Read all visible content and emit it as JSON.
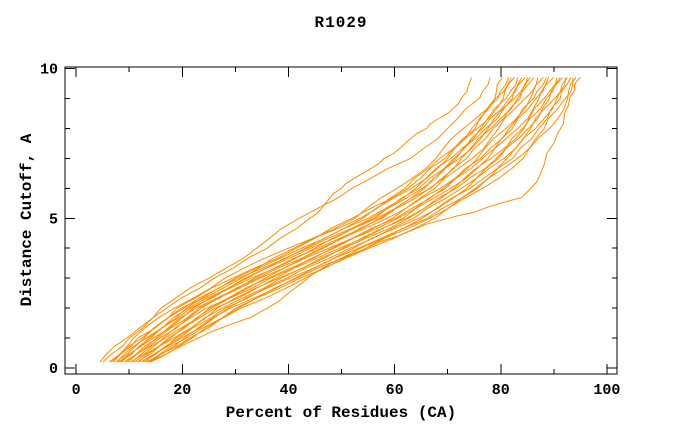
{
  "chart_data": {
    "type": "line",
    "title": "R1029",
    "xlabel": "Percent of Residues (CA)",
    "ylabel": "Distance Cutoff, A",
    "xlim": [
      -2.1,
      101.9
    ],
    "ylim": [
      -0.2,
      10.05
    ],
    "grid": false,
    "legend": "none",
    "axis_color": "#000000",
    "line_color": "#FF8C00",
    "x_major_ticks": [
      0,
      20,
      40,
      60,
      80,
      100
    ],
    "x_tick_labels": [
      "0",
      "20",
      "40",
      "60",
      "80",
      "100"
    ],
    "x_minor_ticks": [
      10,
      30,
      50,
      70,
      90
    ],
    "y_major_ticks": [
      0,
      5,
      10
    ],
    "y_tick_labels": [
      "0",
      "5",
      "10"
    ],
    "y_minor_ticks": [
      1,
      2,
      3,
      4,
      6,
      7,
      8,
      9
    ],
    "series_units": "points are [percent_of_residues, distance_cutoff_A]",
    "series": [
      [
        [
          6.2,
          0.2
        ],
        [
          10.8,
          1
        ],
        [
          18.5,
          2
        ],
        [
          28,
          3
        ],
        [
          40,
          4
        ],
        [
          52.5,
          5
        ],
        [
          60.5,
          6
        ],
        [
          67.8,
          7
        ],
        [
          73,
          8
        ],
        [
          78.9,
          9
        ],
        [
          80.3,
          9.7
        ]
      ],
      [
        [
          6.6,
          0.2
        ],
        [
          12.4,
          1
        ],
        [
          19,
          2
        ],
        [
          29.5,
          3
        ],
        [
          41.5,
          4
        ],
        [
          52,
          5
        ],
        [
          62.5,
          6
        ],
        [
          69.5,
          7
        ],
        [
          74.5,
          8
        ],
        [
          79.5,
          9
        ],
        [
          81.5,
          9.7
        ]
      ],
      [
        [
          7,
          0.2
        ],
        [
          11.6,
          1
        ],
        [
          20.3,
          2
        ],
        [
          30,
          3
        ],
        [
          41,
          4
        ],
        [
          53.5,
          5
        ],
        [
          62,
          6
        ],
        [
          68.5,
          7
        ],
        [
          75.2,
          8
        ],
        [
          79,
          9
        ],
        [
          82,
          9.7
        ]
      ],
      [
        [
          7.4,
          0.2
        ],
        [
          12.8,
          1
        ],
        [
          19.8,
          2
        ],
        [
          31.2,
          3
        ],
        [
          42.5,
          4
        ],
        [
          54,
          5
        ],
        [
          63.2,
          6
        ],
        [
          70,
          7
        ],
        [
          75.6,
          8
        ],
        [
          80.5,
          9
        ],
        [
          82.6,
          9.7
        ]
      ],
      [
        [
          7.8,
          0.2
        ],
        [
          13.2,
          1
        ],
        [
          20.8,
          2
        ],
        [
          30.6,
          3
        ],
        [
          43.2,
          4
        ],
        [
          55,
          5
        ],
        [
          64,
          6
        ],
        [
          70.6,
          7
        ],
        [
          76.2,
          8
        ],
        [
          81,
          9
        ],
        [
          83.2,
          9.7
        ]
      ],
      [
        [
          8,
          0.2
        ],
        [
          13.6,
          1
        ],
        [
          21.2,
          2
        ],
        [
          31.8,
          3
        ],
        [
          43.6,
          4
        ],
        [
          55.6,
          5
        ],
        [
          64.6,
          6
        ],
        [
          71.2,
          7
        ],
        [
          76.6,
          8
        ],
        [
          81.6,
          9
        ],
        [
          84,
          9.7
        ]
      ],
      [
        [
          8.3,
          0.2
        ],
        [
          14,
          1
        ],
        [
          21.6,
          2
        ],
        [
          32.2,
          3
        ],
        [
          44.2,
          4
        ],
        [
          56.2,
          5
        ],
        [
          65.2,
          6
        ],
        [
          71.6,
          7
        ],
        [
          77.2,
          8
        ],
        [
          82.2,
          9
        ],
        [
          84.6,
          9.7
        ]
      ],
      [
        [
          8.6,
          0.2
        ],
        [
          14.5,
          1
        ],
        [
          22.1,
          2
        ],
        [
          33,
          3
        ],
        [
          45,
          4
        ],
        [
          56.6,
          5
        ],
        [
          65.6,
          6
        ],
        [
          72.2,
          7
        ],
        [
          77.6,
          8
        ],
        [
          82.6,
          9
        ],
        [
          85,
          9.7
        ]
      ],
      [
        [
          9,
          0.2
        ],
        [
          15,
          1
        ],
        [
          22.6,
          2
        ],
        [
          33.6,
          3
        ],
        [
          45.6,
          4
        ],
        [
          57.2,
          5
        ],
        [
          66.8,
          6
        ],
        [
          72.6,
          7
        ],
        [
          78.2,
          8
        ],
        [
          83.2,
          9
        ],
        [
          85.6,
          9.7
        ]
      ],
      [
        [
          9.4,
          0.2
        ],
        [
          15.4,
          1
        ],
        [
          23.1,
          2
        ],
        [
          34.2,
          3
        ],
        [
          46.2,
          4
        ],
        [
          57.6,
          5
        ],
        [
          66.6,
          6
        ],
        [
          73.6,
          7
        ],
        [
          78.6,
          8
        ],
        [
          83.6,
          9
        ],
        [
          86.2,
          9.7
        ]
      ],
      [
        [
          9.8,
          0.2
        ],
        [
          15.8,
          1
        ],
        [
          23.6,
          2
        ],
        [
          34.6,
          3
        ],
        [
          46.6,
          4
        ],
        [
          58.6,
          5
        ],
        [
          67.6,
          6
        ],
        [
          74.6,
          7
        ],
        [
          79.6,
          8
        ],
        [
          84.6,
          9
        ],
        [
          87,
          9.7
        ]
      ],
      [
        [
          10.2,
          0.2
        ],
        [
          16.4,
          1
        ],
        [
          24.6,
          2
        ],
        [
          35.6,
          3
        ],
        [
          47.6,
          4
        ],
        [
          59.6,
          5
        ],
        [
          68.6,
          6
        ],
        [
          75.6,
          7
        ],
        [
          81,
          8
        ],
        [
          85.6,
          9
        ],
        [
          88,
          9.7
        ]
      ],
      [
        [
          10.6,
          0.2
        ],
        [
          16.8,
          1
        ],
        [
          25.1,
          2
        ],
        [
          36.2,
          3
        ],
        [
          48.2,
          4
        ],
        [
          60.2,
          5
        ],
        [
          69.2,
          6
        ],
        [
          76.2,
          7
        ],
        [
          81.6,
          8
        ],
        [
          86.2,
          9
        ],
        [
          88.6,
          9.7
        ]
      ],
      [
        [
          11,
          0.2
        ],
        [
          17.4,
          1
        ],
        [
          25.6,
          2
        ],
        [
          36.6,
          3
        ],
        [
          48.6,
          4
        ],
        [
          60.6,
          5
        ],
        [
          69.6,
          6
        ],
        [
          76.6,
          7
        ],
        [
          82.2,
          8
        ],
        [
          86.6,
          9
        ],
        [
          89,
          9.7
        ]
      ],
      [
        [
          11.4,
          0.2
        ],
        [
          17.8,
          1
        ],
        [
          26.2,
          2
        ],
        [
          37.6,
          3
        ],
        [
          49.6,
          4
        ],
        [
          61.6,
          5
        ],
        [
          70.6,
          6
        ],
        [
          77.6,
          7
        ],
        [
          83.2,
          8
        ],
        [
          87.2,
          9
        ],
        [
          90,
          9.7
        ]
      ],
      [
        [
          11.8,
          0.2
        ],
        [
          18.4,
          1
        ],
        [
          26.6,
          2
        ],
        [
          38.2,
          3
        ],
        [
          50.2,
          4
        ],
        [
          62.2,
          5
        ],
        [
          71.2,
          6
        ],
        [
          78.2,
          7
        ],
        [
          84.4,
          8
        ],
        [
          88.2,
          9
        ],
        [
          90.6,
          9.7
        ]
      ],
      [
        [
          12.2,
          0.2
        ],
        [
          18.8,
          1
        ],
        [
          27.6,
          2
        ],
        [
          38.6,
          3
        ],
        [
          50.6,
          4
        ],
        [
          62.6,
          5
        ],
        [
          71.6,
          6
        ],
        [
          79.2,
          7
        ],
        [
          84.2,
          8
        ],
        [
          88.6,
          9
        ],
        [
          91.2,
          9.7
        ]
      ],
      [
        [
          12.6,
          0.2
        ],
        [
          19.4,
          1
        ],
        [
          28.1,
          2
        ],
        [
          39.6,
          3
        ],
        [
          51.6,
          4
        ],
        [
          63.6,
          5
        ],
        [
          72.6,
          6
        ],
        [
          79.6,
          7
        ],
        [
          85.2,
          8
        ],
        [
          89.2,
          9
        ],
        [
          91.6,
          9.7
        ]
      ],
      [
        [
          13,
          0.2
        ],
        [
          19.8,
          1
        ],
        [
          28.6,
          2
        ],
        [
          40.2,
          3
        ],
        [
          52.2,
          4
        ],
        [
          64.6,
          5
        ],
        [
          73.6,
          6
        ],
        [
          80.6,
          7
        ],
        [
          85.6,
          8
        ],
        [
          90.2,
          9
        ],
        [
          92.2,
          9.7
        ]
      ],
      [
        [
          13.3,
          0.2
        ],
        [
          20.4,
          1
        ],
        [
          29.1,
          2
        ],
        [
          41.2,
          3
        ],
        [
          53.2,
          4
        ],
        [
          65.2,
          5
        ],
        [
          74.2,
          6
        ],
        [
          81.2,
          7
        ],
        [
          86.6,
          8
        ],
        [
          90.6,
          9
        ],
        [
          92.6,
          9.7
        ]
      ],
      [
        [
          13.6,
          0.2
        ],
        [
          20.8,
          1
        ],
        [
          30.1,
          2
        ],
        [
          41.6,
          3
        ],
        [
          53.6,
          4
        ],
        [
          66.2,
          5
        ],
        [
          75.2,
          6
        ],
        [
          82.2,
          7
        ],
        [
          87.2,
          8
        ],
        [
          91.2,
          9
        ],
        [
          93.2,
          9.7
        ]
      ],
      [
        [
          13.8,
          0.2
        ],
        [
          21.4,
          1
        ],
        [
          30.6,
          2
        ],
        [
          42.2,
          3
        ],
        [
          54.6,
          4
        ],
        [
          66.6,
          5
        ],
        [
          75.6,
          6
        ],
        [
          83.2,
          7
        ],
        [
          88.2,
          8
        ],
        [
          92.2,
          9
        ],
        [
          93.6,
          9.7
        ]
      ],
      [
        [
          14,
          0.2
        ],
        [
          21.8,
          1
        ],
        [
          31.1,
          2
        ],
        [
          43.2,
          3
        ],
        [
          55.2,
          4
        ],
        [
          67.6,
          5
        ],
        [
          76.6,
          6
        ],
        [
          84.2,
          7
        ],
        [
          89.2,
          8
        ],
        [
          92.6,
          9
        ],
        [
          94.2,
          9.7
        ]
      ],
      [
        [
          4.5,
          0.2
        ],
        [
          9.5,
          1
        ],
        [
          16,
          2
        ],
        [
          25,
          3
        ],
        [
          34,
          4
        ],
        [
          42,
          5
        ],
        [
          52,
          6
        ],
        [
          63,
          7
        ],
        [
          70,
          8
        ],
        [
          76,
          9
        ],
        [
          78,
          9.7
        ]
      ],
      [
        [
          5,
          0.2
        ],
        [
          10,
          1
        ],
        [
          17,
          2
        ],
        [
          26,
          3
        ],
        [
          36,
          4
        ],
        [
          44,
          5
        ],
        [
          47,
          5.5
        ],
        [
          50,
          6
        ],
        [
          54,
          6.5
        ],
        [
          58,
          7
        ],
        [
          62,
          7.5
        ],
        [
          66,
          8
        ],
        [
          70,
          8.5
        ],
        [
          72.5,
          9
        ],
        [
          74.5,
          9.7
        ]
      ],
      [
        [
          13.5,
          0.2
        ],
        [
          23,
          1
        ],
        [
          33,
          1.7
        ],
        [
          40,
          2.5
        ],
        [
          48,
          3.5
        ],
        [
          57,
          4.2
        ],
        [
          66,
          4.8
        ],
        [
          75,
          5.2
        ],
        [
          84,
          5.7
        ],
        [
          87.5,
          6.5
        ],
        [
          90,
          7.5
        ],
        [
          92,
          8.5
        ],
        [
          94,
          9.3
        ],
        [
          95,
          9.7
        ]
      ]
    ]
  }
}
